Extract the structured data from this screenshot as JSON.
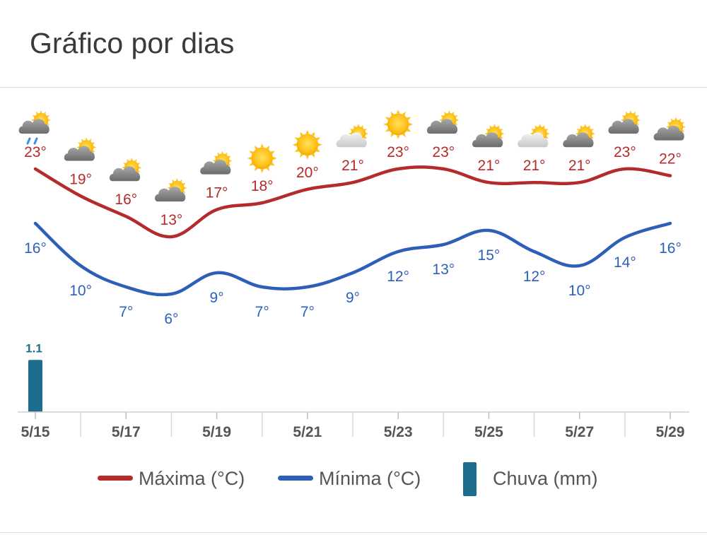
{
  "page": {
    "title": "Gráfico por dias"
  },
  "chart_data": {
    "type": "line",
    "title": "Gráfico por dias",
    "x": [
      "5/15",
      "5/16",
      "5/17",
      "5/18",
      "5/19",
      "5/20",
      "5/21",
      "5/22",
      "5/23",
      "5/24",
      "5/25",
      "5/26",
      "5/27",
      "5/28",
      "5/29"
    ],
    "x_tick_labels": [
      "5/15",
      "5/17",
      "5/19",
      "5/21",
      "5/23",
      "5/25",
      "5/27",
      "5/29"
    ],
    "series": [
      {
        "name": "Máxima (°C)",
        "color": "#b52a2a",
        "values": [
          23,
          19,
          16,
          13,
          17,
          18,
          20,
          21,
          23,
          23,
          21,
          21,
          21,
          23,
          22
        ]
      },
      {
        "name": "Mínima (°C)",
        "color": "#2e5fb8",
        "values": [
          16,
          10,
          7,
          6,
          9,
          7,
          7,
          9,
          12,
          13,
          15,
          12,
          10,
          14,
          16
        ]
      },
      {
        "name": "Chuva (mm)",
        "type": "bar",
        "color": "#1d6e8e",
        "values": [
          1.1,
          0,
          0,
          0,
          0,
          0,
          0,
          0,
          0,
          0,
          0,
          0,
          0,
          0,
          0
        ]
      }
    ],
    "label_unit": "°",
    "rain_labels": [
      "1.1",
      "",
      "",
      "",
      "",
      "",
      "",
      "",
      "",
      "",
      "",
      "",
      "",
      "",
      ""
    ],
    "weather_icons": [
      "sun-cloud-rain-icon",
      "sun-cloud-icon",
      "sun-cloud-icon",
      "sun-cloud-icon",
      "sun-cloud-icon",
      "sun-icon",
      "sun-icon",
      "sun-cloud-light-icon",
      "sun-icon",
      "sun-cloud-icon",
      "sun-cloud-icon",
      "sun-cloud-light-icon",
      "sun-cloud-icon",
      "sun-cloud-icon",
      "sun-cloud-icon"
    ],
    "legend": {
      "placement": "bottom"
    },
    "grid": false
  }
}
